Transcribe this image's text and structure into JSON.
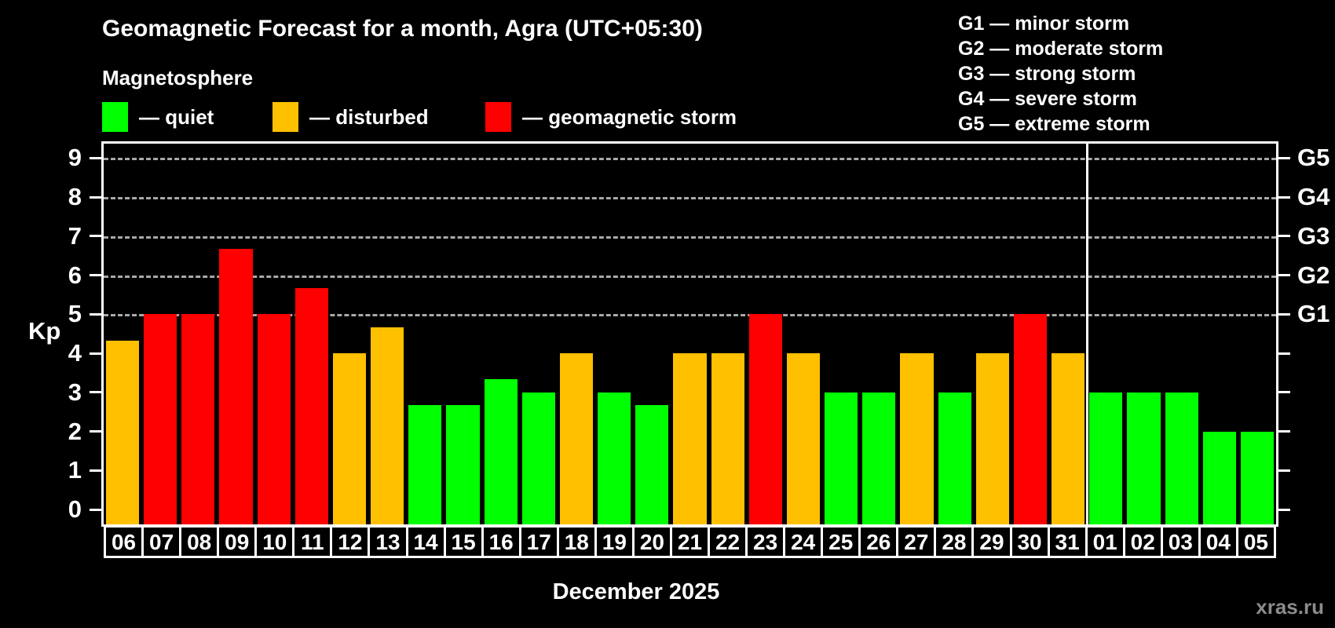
{
  "header": {
    "title": "Geomagnetic Forecast for a month, Agra (UTC+05:30)",
    "subtitle": "Magnetosphere"
  },
  "legend": {
    "items": [
      {
        "key": "quiet",
        "label": "— quiet",
        "color": "#00ff00"
      },
      {
        "key": "disturbed",
        "label": "— disturbed",
        "color": "#ffc000"
      },
      {
        "key": "storm",
        "label": "— geomagnetic storm",
        "color": "#ff0000"
      }
    ]
  },
  "storm_scale": {
    "lines": [
      "G1 — minor storm",
      "G2 — moderate storm",
      "G3 — strong storm",
      "G4 — severe storm",
      "G5 — extreme storm"
    ]
  },
  "axis": {
    "left_title": "Kp",
    "kp_ticks": [
      0,
      1,
      2,
      3,
      4,
      5,
      6,
      7,
      8,
      9
    ],
    "grid_values": [
      5,
      6,
      7,
      8,
      9
    ],
    "g_labels": [
      "G1",
      "G2",
      "G3",
      "G4",
      "G5"
    ]
  },
  "footer": {
    "month_label": "December 2025",
    "watermark": "xras.ru"
  },
  "chart_data": {
    "type": "bar",
    "title": "Geomagnetic Forecast for a month, Agra (UTC+05:30)",
    "xlabel": "December 2025",
    "ylabel": "Kp",
    "ylim": [
      0,
      9
    ],
    "grid": "dashed horizontal at Kp 5-9 (G1-G5)",
    "legend_position": "top-left",
    "categories": [
      "06",
      "07",
      "08",
      "09",
      "10",
      "11",
      "12",
      "13",
      "14",
      "15",
      "16",
      "17",
      "18",
      "19",
      "20",
      "21",
      "22",
      "23",
      "24",
      "25",
      "26",
      "27",
      "28",
      "29",
      "30",
      "31",
      "01",
      "02",
      "03",
      "04",
      "05"
    ],
    "values": [
      4.33,
      5,
      5,
      6.67,
      5,
      5.67,
      4,
      4.67,
      2.67,
      2.67,
      3.33,
      3,
      4,
      3,
      2.67,
      4,
      4,
      5,
      4,
      3,
      3,
      4,
      3,
      4,
      5,
      4,
      3,
      3,
      3,
      2,
      2
    ],
    "statuses": [
      "disturbed",
      "storm",
      "storm",
      "storm",
      "storm",
      "storm",
      "disturbed",
      "disturbed",
      "quiet",
      "quiet",
      "quiet",
      "quiet",
      "disturbed",
      "quiet",
      "quiet",
      "disturbed",
      "disturbed",
      "storm",
      "disturbed",
      "quiet",
      "quiet",
      "disturbed",
      "quiet",
      "disturbed",
      "storm",
      "disturbed",
      "quiet",
      "quiet",
      "quiet",
      "quiet",
      "quiet"
    ],
    "month_divider_after_bar": 26
  }
}
